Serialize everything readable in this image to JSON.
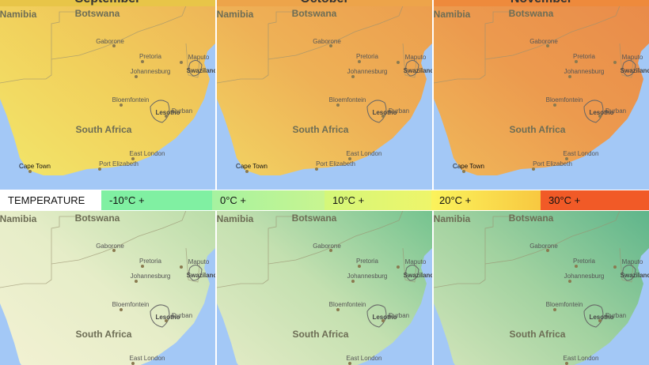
{
  "headers": [
    "September",
    "October",
    "November"
  ],
  "legend": {
    "title": "TEMPERATURE",
    "items": [
      "-10°C +",
      "0°C +",
      "10°C +",
      "20°C +",
      "30°C +"
    ]
  },
  "countries": [
    "Namibia",
    "Botswana",
    "Swaziland",
    "Lesotho",
    "South Africa"
  ],
  "cities": [
    "Gaborone",
    "Pretoria",
    "Johannesburg",
    "Maputo",
    "Bloemfontein",
    "Durban",
    "East London",
    "Port Elizabeth",
    "Cape Town"
  ]
}
